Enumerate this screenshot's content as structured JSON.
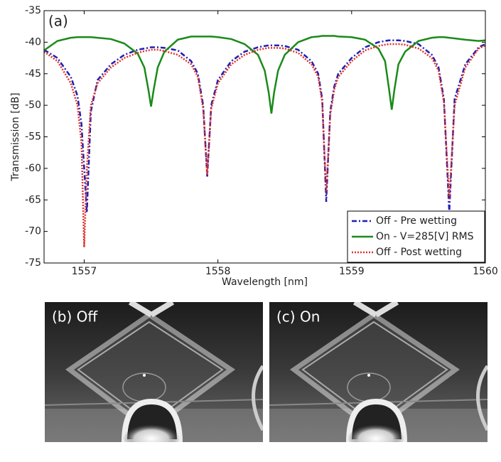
{
  "chart_data": {
    "type": "line",
    "annotation": "(a)",
    "xlabel": "Wavelength [nm]",
    "ylabel": "Transmission [dB]",
    "x": [
      1556.7,
      1556.8,
      1556.9,
      1556.95,
      1556.98,
      1557.0,
      1557.02,
      1557.05,
      1557.1,
      1557.2,
      1557.3,
      1557.4,
      1557.45,
      1557.48,
      1557.5,
      1557.52,
      1557.55,
      1557.6,
      1557.7,
      1557.8,
      1557.85,
      1557.89,
      1557.92,
      1557.95,
      1558.0,
      1558.1,
      1558.2,
      1558.3,
      1558.35,
      1558.38,
      1558.4,
      1558.42,
      1558.45,
      1558.5,
      1558.6,
      1558.7,
      1558.75,
      1558.78,
      1558.81,
      1558.84,
      1558.87,
      1558.9,
      1559.0,
      1559.1,
      1559.2,
      1559.25,
      1559.28,
      1559.3,
      1559.32,
      1559.35,
      1559.4,
      1559.5,
      1559.6,
      1559.65,
      1559.69,
      1559.73,
      1559.77,
      1559.85,
      1559.95,
      1560.0
    ],
    "series": [
      {
        "name": "Off - Pre wetting",
        "color": "#1f1fb4",
        "style": "dashdot",
        "values": [
          -41.2,
          -42.5,
          -45.5,
          -48.5,
          -53,
          -60,
          -67,
          -51,
          -46,
          -43.5,
          -42,
          -41.2,
          -41,
          -40.9,
          -40.8,
          -40.8,
          -40.8,
          -40.9,
          -41.3,
          -43,
          -45,
          -50,
          -61.3,
          -50,
          -46,
          -43,
          -41.5,
          -40.8,
          -40.6,
          -40.5,
          -40.5,
          -40.5,
          -40.5,
          -40.6,
          -41.2,
          -43,
          -45,
          -49,
          -65.3,
          -51,
          -47,
          -45,
          -42.5,
          -40.8,
          -40,
          -39.8,
          -39.7,
          -39.7,
          -39.7,
          -39.7,
          -39.8,
          -40.3,
          -42,
          -44,
          -49,
          -67,
          -49,
          -43.5,
          -40.8,
          -40.3
        ]
      },
      {
        "name": "On - V=285[V] RMS",
        "color": "#1a8a1a",
        "style": "solid",
        "values": [
          -41.3,
          -39.8,
          -39.3,
          -39.2,
          -39.2,
          -39.2,
          -39.2,
          -39.2,
          -39.3,
          -39.5,
          -40.2,
          -41.8,
          -44,
          -47.5,
          -50.2,
          -47.5,
          -44,
          -41.5,
          -39.6,
          -39.1,
          -39.1,
          -39.1,
          -39.1,
          -39.1,
          -39.2,
          -39.5,
          -40.3,
          -42,
          -44.5,
          -48,
          -51.3,
          -48,
          -44.5,
          -42,
          -40,
          -39.2,
          -39.1,
          -39,
          -39,
          -39,
          -39,
          -39.1,
          -39.2,
          -39.6,
          -41,
          -43,
          -47.5,
          -50.7,
          -47.5,
          -43.5,
          -41.5,
          -39.8,
          -39.3,
          -39.2,
          -39.2,
          -39.3,
          -39.4,
          -39.6,
          -39.8,
          -39.7
        ]
      },
      {
        "name": "Off - Post wetting",
        "color": "#e0302a",
        "style": "dotted",
        "values": [
          -41.5,
          -43,
          -46.5,
          -50,
          -56,
          -72.5,
          -60,
          -50,
          -46.5,
          -44,
          -42.5,
          -41.7,
          -41.4,
          -41.3,
          -41.2,
          -41.2,
          -41.2,
          -41.4,
          -42,
          -43.5,
          -45.5,
          -50.5,
          -61,
          -50.5,
          -46.5,
          -43.5,
          -42,
          -41.2,
          -41,
          -40.9,
          -40.9,
          -40.9,
          -40.9,
          -41,
          -41.7,
          -43.5,
          -45.5,
          -49.5,
          -64,
          -51.5,
          -47.5,
          -45.5,
          -43,
          -41.3,
          -40.6,
          -40.4,
          -40.3,
          -40.3,
          -40.3,
          -40.3,
          -40.4,
          -41,
          -42.5,
          -44.5,
          -49.5,
          -65,
          -50,
          -44,
          -41,
          -40.5
        ]
      }
    ],
    "xlim": [
      1556.7,
      1560
    ],
    "xticks": [
      1557,
      1558,
      1559,
      1560
    ],
    "ylim": [
      -75,
      -35
    ],
    "yticks": [
      -35,
      -40,
      -45,
      -50,
      -55,
      -60,
      -65,
      -70,
      -75
    ],
    "legend": "lower right"
  },
  "photos": [
    {
      "label": "(b) Off"
    },
    {
      "label": "(c) On"
    }
  ]
}
